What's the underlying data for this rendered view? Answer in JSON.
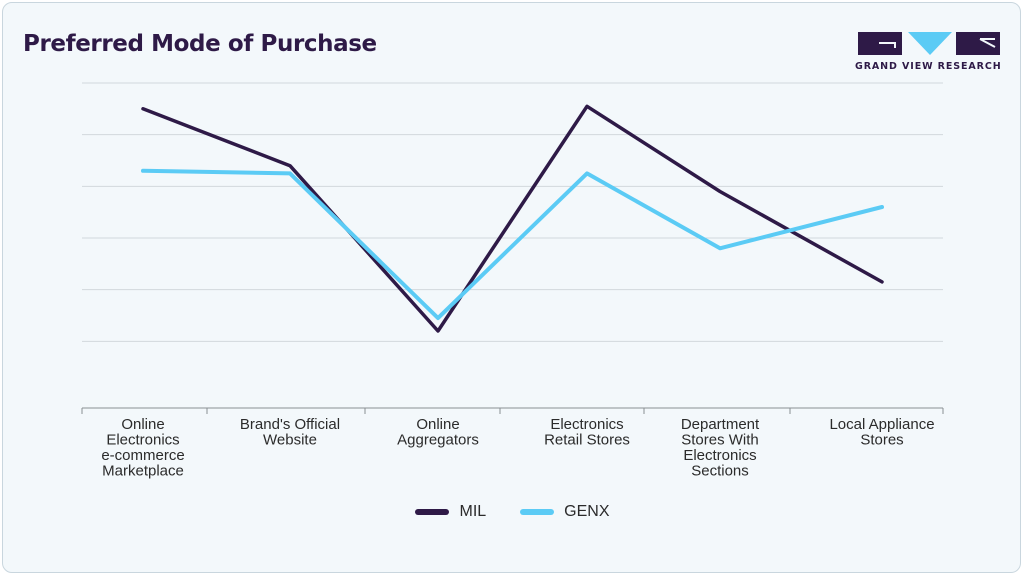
{
  "header": {
    "title": "Preferred Mode of Purchase",
    "brand": "GRAND VIEW RESEARCH"
  },
  "colors": {
    "mil": "#2e1a47",
    "genx": "#5bcbf5",
    "grid": "#d2d8dc",
    "axis": "#8a8f93"
  },
  "chart_data": {
    "type": "line",
    "title": "Preferred Mode of Purchase",
    "xlabel": "",
    "ylabel": "",
    "ylim": [
      0,
      60
    ],
    "grid": true,
    "legend_position": "bottom-center",
    "categories": [
      "Online Electronics e-commerce Marketplace",
      "Brand's Official Website",
      "Online Aggregators",
      "Electronics Retail Stores",
      "Department Stores With Electronics Sections",
      "Local Appliance Stores"
    ],
    "category_lines": [
      [
        "Online",
        "Electronics",
        "e-commerce",
        "Marketplace"
      ],
      [
        "Brand's Official",
        "Website"
      ],
      [
        "Online",
        "Aggregators"
      ],
      [
        "Electronics",
        "Retail Stores"
      ],
      [
        "Department",
        "Stores With",
        "Electronics",
        "Sections"
      ],
      [
        "Local Appliance",
        "Stores"
      ]
    ],
    "series": [
      {
        "name": "MIL",
        "color": "#2e1a47",
        "values": [
          55,
          44,
          12,
          55.5,
          39,
          21.5
        ]
      },
      {
        "name": "GENX",
        "color": "#5bcbf5",
        "values": [
          43,
          42.5,
          14.5,
          42.5,
          28,
          36
        ]
      }
    ]
  }
}
